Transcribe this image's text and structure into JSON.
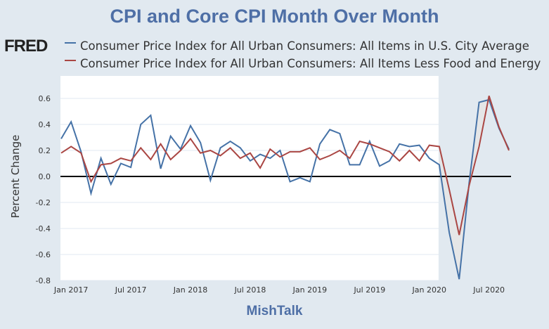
{
  "logo": "FRED",
  "chart_data": {
    "type": "line",
    "title": "CPI and Core CPI Month Over Month",
    "ylabel": "Percent Change",
    "xlabel": "",
    "footer": "MishTalk",
    "ylim": [
      -0.8,
      0.7
    ],
    "yticks": [
      "0.6",
      "0.4",
      "0.2",
      "0.0",
      "-0.2",
      "-0.4",
      "-0.6",
      "-0.8"
    ],
    "ytick_values": [
      0.6,
      0.4,
      0.2,
      0,
      -0.2,
      -0.4,
      -0.6,
      -0.8
    ],
    "xticks": [
      {
        "label": "Jan 2017",
        "index": 1
      },
      {
        "label": "Jul 2017",
        "index": 7
      },
      {
        "label": "Jan 2018",
        "index": 13
      },
      {
        "label": "Jul 2018",
        "index": 19
      },
      {
        "label": "Jan 2019",
        "index": 25
      },
      {
        "label": "Jul 2019",
        "index": 31
      },
      {
        "label": "Jan 2020",
        "index": 37
      },
      {
        "label": "Jul 2020",
        "index": 43
      }
    ],
    "x": [
      "2016-12",
      "2017-01",
      "2017-02",
      "2017-03",
      "2017-04",
      "2017-05",
      "2017-06",
      "2017-07",
      "2017-08",
      "2017-09",
      "2017-10",
      "2017-11",
      "2017-12",
      "2018-01",
      "2018-02",
      "2018-03",
      "2018-04",
      "2018-05",
      "2018-06",
      "2018-07",
      "2018-08",
      "2018-09",
      "2018-10",
      "2018-11",
      "2018-12",
      "2019-01",
      "2019-02",
      "2019-03",
      "2019-04",
      "2019-05",
      "2019-06",
      "2019-07",
      "2019-08",
      "2019-09",
      "2019-10",
      "2019-11",
      "2019-12",
      "2020-01",
      "2020-02",
      "2020-03",
      "2020-04",
      "2020-05",
      "2020-06",
      "2020-07",
      "2020-08",
      "2020-09"
    ],
    "series": [
      {
        "name": "Consumer Price Index for All Urban Consumers: All Items in U.S. City Average",
        "color": "#4572a7",
        "values": [
          0.29,
          0.42,
          0.19,
          -0.13,
          0.14,
          -0.06,
          0.1,
          0.07,
          0.4,
          0.47,
          0.06,
          0.31,
          0.21,
          0.39,
          0.26,
          -0.03,
          0.22,
          0.27,
          0.22,
          0.12,
          0.17,
          0.14,
          0.2,
          -0.04,
          -0.01,
          -0.04,
          0.25,
          0.36,
          0.33,
          0.09,
          0.09,
          0.27,
          0.08,
          0.12,
          0.25,
          0.23,
          0.24,
          0.14,
          0.09,
          -0.43,
          -0.79,
          -0.05,
          0.57,
          0.59,
          0.37,
          0.21
        ]
      },
      {
        "name": "Consumer Price Index for All Urban Consumers: All Items Less Food and Energy",
        "color": "#aa4643",
        "values": [
          0.18,
          0.23,
          0.18,
          -0.04,
          0.09,
          0.1,
          0.14,
          0.12,
          0.22,
          0.13,
          0.25,
          0.13,
          0.2,
          0.29,
          0.18,
          0.2,
          0.16,
          0.22,
          0.14,
          0.18,
          0.065,
          0.21,
          0.15,
          0.19,
          0.19,
          0.22,
          0.13,
          0.16,
          0.2,
          0.14,
          0.27,
          0.25,
          0.22,
          0.19,
          0.12,
          0.2,
          0.12,
          0.24,
          0.23,
          -0.1,
          -0.45,
          -0.07,
          0.23,
          0.62,
          0.38,
          0.2
        ]
      }
    ],
    "recession_start_index": 38,
    "grid": true,
    "legend": "top-left"
  }
}
